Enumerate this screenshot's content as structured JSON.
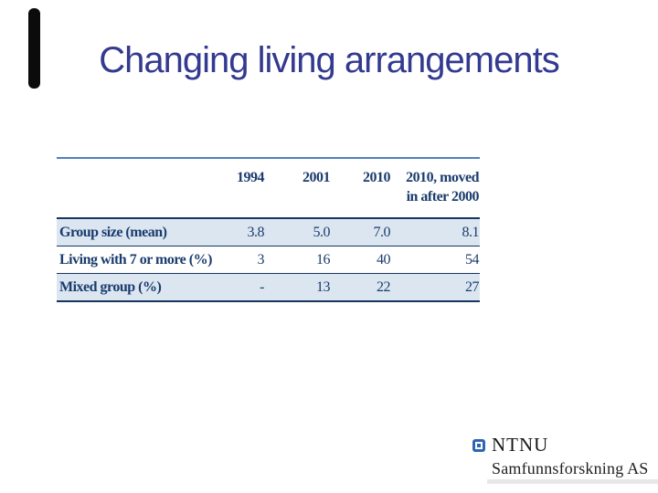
{
  "slide": {
    "title": "Changing living arrangements"
  },
  "colors": {
    "title_text": "#333a8f",
    "table_top_border": "#4f81bd",
    "table_dark_border": "#17365d",
    "table_band": "#dce6f1",
    "table_text": "#1b3c6d",
    "ntnu_blue": "#2f66b1",
    "side_bar": "#0b0b0b"
  },
  "table": {
    "columns": [
      "",
      "1994",
      "2001",
      "2010",
      "2010, moved in after 2000"
    ],
    "rows": [
      {
        "label": "Group size (mean)",
        "values": [
          "3.8",
          "5.0",
          "7.0",
          "8.1"
        ]
      },
      {
        "label": "Living with 7 or more (%)",
        "values": [
          "3",
          "16",
          "40",
          "54"
        ]
      },
      {
        "label": "Mixed group (%)",
        "values": [
          "-",
          "13",
          "22",
          "27"
        ]
      }
    ]
  },
  "footer": {
    "org": "NTNU",
    "org_sub": "Samfunnsforskning AS"
  },
  "chart_data": {
    "type": "table",
    "title": "Changing living arrangements",
    "columns": [
      "",
      "1994",
      "2001",
      "2010",
      "2010, moved in after 2000"
    ],
    "rows": [
      [
        "Group size (mean)",
        "3.8",
        "5.0",
        "7.0",
        "8.1"
      ],
      [
        "Living with 7 or more (%)",
        "3",
        "16",
        "40",
        "54"
      ],
      [
        "Mixed group (%)",
        "-",
        "13",
        "22",
        "27"
      ]
    ]
  }
}
